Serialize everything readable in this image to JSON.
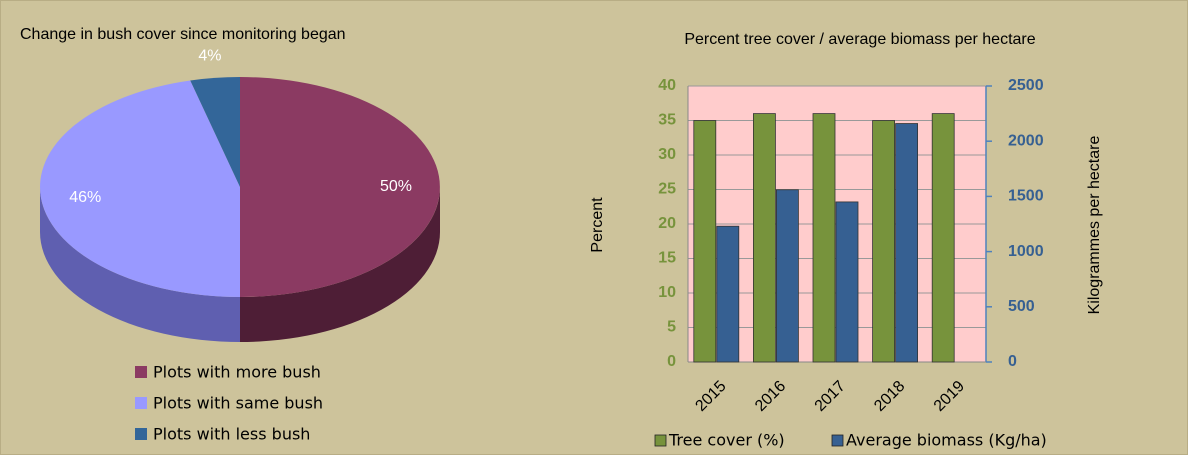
{
  "chart_data": [
    {
      "type": "pie",
      "title": "Change in bush cover since monitoring began",
      "categories": [
        "Plots with more bush",
        "Plots with same bush",
        "Plots with less bush"
      ],
      "values": [
        50,
        46,
        4
      ],
      "value_labels": [
        "50%",
        "46%",
        "4%"
      ],
      "colors": [
        "#8b3a62",
        "#9999ff",
        "#336699"
      ],
      "side_colors": [
        "#4e1e36",
        "#5f5fb0",
        "#1e3e5e"
      ]
    },
    {
      "type": "bar",
      "title": "Percent tree cover / average biomass per hectare",
      "categories": [
        "2015",
        "2016",
        "2017",
        "2018",
        "2019"
      ],
      "series": [
        {
          "name": "Tree cover (%)",
          "color": "#77933c",
          "values": [
            35,
            36,
            36,
            35,
            36
          ]
        },
        {
          "name": "Average biomass (Kg/ha)",
          "color": "#366092",
          "axis": "y2",
          "values": [
            1230,
            1560,
            1450,
            2160,
            null
          ]
        }
      ],
      "ylabel": "Percent",
      "y2label": "Kilogrammes  per hectare",
      "ylim": [
        0,
        40
      ],
      "yticks": [
        0,
        5,
        10,
        15,
        20,
        25,
        30,
        35,
        40
      ],
      "y2lim": [
        0,
        2500
      ],
      "y2ticks": [
        0,
        500,
        1000,
        1500,
        2000,
        2500
      ],
      "grid": true,
      "legend": "bottom",
      "plot_background": "#ffcccc"
    }
  ]
}
